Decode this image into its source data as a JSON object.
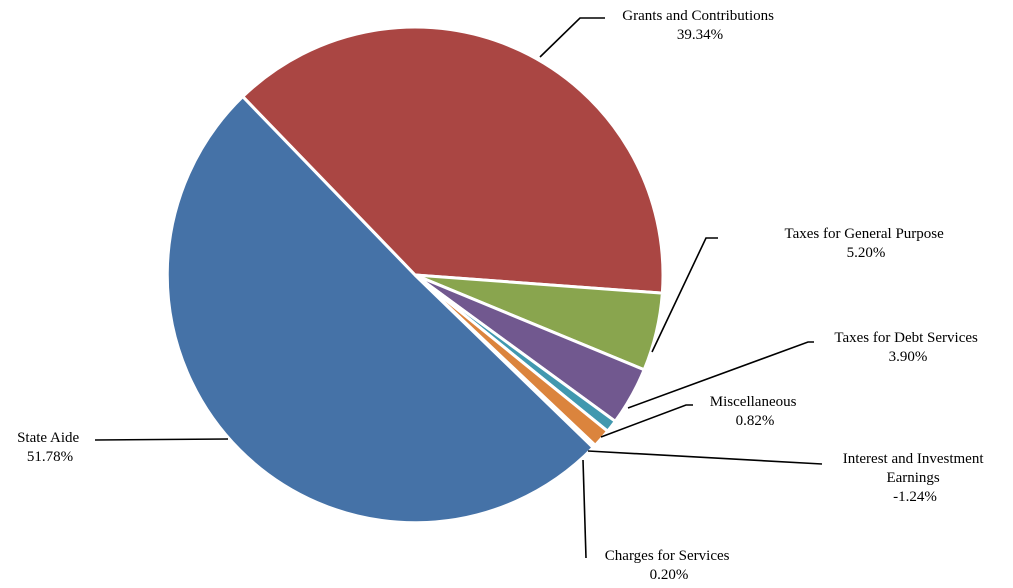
{
  "chart_data": {
    "type": "pie",
    "title": "",
    "slices": [
      {
        "name": "Grants and Contributions",
        "value_label": "39.34%",
        "value": 39.34,
        "color": "#AA4643"
      },
      {
        "name": "Taxes for General Purpose",
        "value_label": "5.20%",
        "value": 5.2,
        "color": "#89A54E"
      },
      {
        "name": "Taxes for Debt Services",
        "value_label": "3.90%",
        "value": 3.9,
        "color": "#71588F"
      },
      {
        "name": "Miscellaneous",
        "value_label": "0.82%",
        "value": 0.82,
        "color": "#4198AF"
      },
      {
        "name": "Interest and Investment Earnings",
        "value_label": "-1.24%",
        "value": -1.24,
        "color": "#DB843D"
      },
      {
        "name": "Charges for Services",
        "value_label": "0.20%",
        "value": 0.2,
        "color": "#93A9CF"
      },
      {
        "name": "State Aide",
        "value_label": "51.78%",
        "value": 51.78,
        "color": "#4572A7"
      }
    ]
  }
}
